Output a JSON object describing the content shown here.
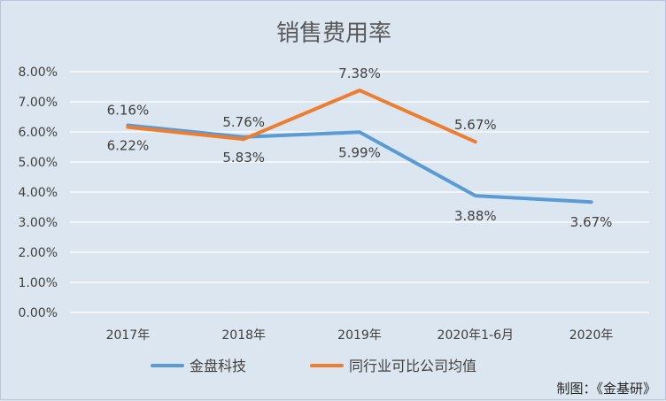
{
  "chart_data": {
    "type": "line",
    "title": "销售费用率",
    "categories": [
      "2017年",
      "2018年",
      "2019年",
      "2020年1-6月",
      "2020年"
    ],
    "series": [
      {
        "name": "金盘科技",
        "color": "#5b9bd5",
        "values": [
          6.22,
          5.83,
          5.99,
          3.88,
          3.67
        ],
        "labels": [
          "6.22%",
          "5.83%",
          "5.99%",
          "3.88%",
          "3.67%"
        ]
      },
      {
        "name": "同行业可比公司均值",
        "color": "#ed7d31",
        "values": [
          6.16,
          5.76,
          7.38,
          5.67,
          null
        ],
        "labels": [
          "6.16%",
          "5.76%",
          "7.38%",
          "5.67%",
          null
        ]
      }
    ],
    "ylim": [
      0,
      8
    ],
    "yticks": [
      "0.00%",
      "1.00%",
      "2.00%",
      "3.00%",
      "4.00%",
      "5.00%",
      "6.00%",
      "7.00%",
      "8.00%"
    ],
    "xlabel": "",
    "ylabel": "",
    "grid": true,
    "legend": "bottom",
    "credit": "制图：《金基研》"
  }
}
